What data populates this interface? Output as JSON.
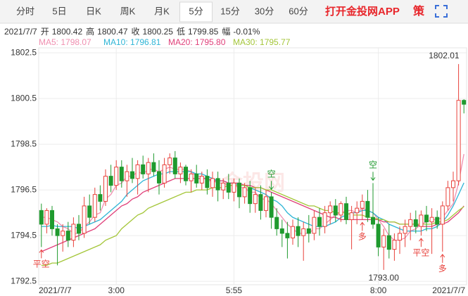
{
  "tabs": [
    "分时",
    "5日",
    "日K",
    "周K",
    "月K",
    "5分",
    "15分",
    "30分",
    "60分"
  ],
  "tab_selected": 5,
  "promo": "打开金投网APP",
  "strategy_icon": "策",
  "info_bar": {
    "date": "2021/7/7",
    "items": [
      {
        "label": "开",
        "value": "1800.42"
      },
      {
        "label": "高",
        "value": "1800.47"
      },
      {
        "label": "收",
        "value": "1800.25"
      },
      {
        "label": "低",
        "value": "1799.85"
      },
      {
        "label": "幅",
        "value": "-0.01%"
      }
    ]
  },
  "chart_data": {
    "type": "candlestick",
    "watermark": "金投网",
    "categories": [
      "2021/7/7",
      null,
      null,
      null,
      null,
      null,
      null,
      null,
      null,
      null,
      null,
      null,
      null,
      null,
      "3:00",
      null,
      null,
      null,
      null,
      null,
      null,
      null,
      null,
      null,
      null,
      null,
      null,
      null,
      null,
      null,
      null,
      null,
      null,
      null,
      null,
      null,
      "5:55",
      null,
      null,
      null,
      null,
      null,
      null,
      null,
      null,
      null,
      null,
      null,
      null,
      null,
      null,
      null,
      null,
      null,
      null,
      null,
      null,
      null,
      null,
      null,
      null,
      null,
      null,
      "8:00",
      null,
      null,
      null,
      null,
      null,
      null,
      null,
      null,
      null,
      null,
      null,
      null,
      null,
      null,
      null,
      "2021/7/7"
    ],
    "open": [
      1795.6,
      1795.0,
      1795.6,
      1794.8,
      1794.5,
      1794.7,
      1794.3,
      1795.0,
      1794.6,
      1795.8,
      1795.3,
      1796.3,
      1796.0,
      1797.1,
      1796.7,
      1797.5,
      1796.9,
      1797.3,
      1797.0,
      1797.6,
      1797.2,
      1797.7,
      1797.3,
      1796.8,
      1797.6,
      1797.9,
      1797.2,
      1797.5,
      1796.9,
      1797.2,
      1796.8,
      1797.1,
      1796.6,
      1797.0,
      1796.5,
      1796.8,
      1796.4,
      1796.8,
      1796.2,
      1796.6,
      1795.9,
      1796.3,
      1795.6,
      1796.2,
      1795.3,
      1794.8,
      1794.6,
      1794.4,
      1794.9,
      1794.5,
      1794.8,
      1794.6,
      1795.3,
      1794.9,
      1795.5,
      1795.8,
      1795.4,
      1795.9,
      1795.2,
      1795.5,
      1795.7,
      1796.0,
      1795.3,
      1795.0,
      1794.0,
      1794.5,
      1793.9,
      1794.3,
      1794.6,
      1794.9,
      1795.2,
      1794.9,
      1795.4,
      1795.1,
      1795.3,
      1795.0,
      1795.8,
      1796.6,
      1796.9,
      1800.42
    ],
    "high": [
      1795.9,
      1795.7,
      1795.8,
      1795.0,
      1795.0,
      1795.1,
      1795.3,
      1795.4,
      1796.2,
      1796.3,
      1796.6,
      1796.7,
      1797.4,
      1797.6,
      1797.8,
      1797.8,
      1797.6,
      1797.9,
      1797.8,
      1798.0,
      1797.9,
      1798.1,
      1797.8,
      1797.9,
      1798.1,
      1798.2,
      1797.7,
      1797.6,
      1797.4,
      1797.6,
      1797.3,
      1797.4,
      1797.3,
      1797.3,
      1797.0,
      1797.2,
      1797.0,
      1797.0,
      1796.8,
      1796.9,
      1796.6,
      1796.7,
      1796.5,
      1796.4,
      1795.7,
      1795.2,
      1795.1,
      1795.2,
      1795.3,
      1795.1,
      1795.4,
      1795.6,
      1795.7,
      1795.8,
      1796.0,
      1796.1,
      1796.0,
      1796.2,
      1795.8,
      1796.0,
      1796.3,
      1796.5,
      1796.8,
      1795.3,
      1794.8,
      1795.0,
      1794.6,
      1794.9,
      1795.2,
      1795.5,
      1795.6,
      1795.6,
      1795.8,
      1795.7,
      1795.6,
      1796.0,
      1796.9,
      1797.3,
      1802.01,
      1800.47
    ],
    "low": [
      1794.0,
      1794.6,
      1794.5,
      1793.2,
      1793.8,
      1794.0,
      1794.0,
      1794.3,
      1794.4,
      1795.0,
      1795.1,
      1795.6,
      1795.8,
      1796.4,
      1796.5,
      1796.6,
      1796.2,
      1796.8,
      1796.3,
      1797.0,
      1796.4,
      1797.1,
      1796.3,
      1796.6,
      1797.2,
      1797.0,
      1796.8,
      1796.7,
      1796.4,
      1796.6,
      1796.5,
      1796.3,
      1796.2,
      1796.0,
      1796.1,
      1796.1,
      1796.0,
      1795.7,
      1795.9,
      1795.5,
      1795.5,
      1795.2,
      1795.3,
      1794.8,
      1794.5,
      1794.0,
      1793.5,
      1794.1,
      1794.0,
      1793.4,
      1794.2,
      1794.3,
      1794.5,
      1794.6,
      1795.0,
      1795.1,
      1795.1,
      1795.0,
      1793.9,
      1795.0,
      1795.2,
      1795.1,
      1794.8,
      1793.6,
      1793.0,
      1793.5,
      1793.4,
      1793.7,
      1794.0,
      1794.3,
      1794.6,
      1794.5,
      1794.7,
      1793.7,
      1794.8,
      1793.8,
      1795.6,
      1796.0,
      1796.7,
      1799.85
    ],
    "close": [
      1795.0,
      1795.6,
      1794.8,
      1794.5,
      1794.7,
      1794.3,
      1795.0,
      1794.6,
      1795.8,
      1795.3,
      1796.3,
      1796.0,
      1797.1,
      1796.7,
      1797.5,
      1796.9,
      1797.3,
      1797.0,
      1797.6,
      1797.2,
      1797.7,
      1797.3,
      1796.8,
      1797.6,
      1797.9,
      1797.2,
      1797.5,
      1796.9,
      1797.2,
      1796.8,
      1797.1,
      1796.6,
      1797.0,
      1796.5,
      1796.8,
      1796.4,
      1796.8,
      1796.2,
      1796.6,
      1795.9,
      1796.3,
      1795.6,
      1796.2,
      1795.3,
      1794.8,
      1794.6,
      1794.4,
      1794.9,
      1794.5,
      1794.8,
      1794.6,
      1795.3,
      1794.9,
      1795.5,
      1795.8,
      1795.4,
      1795.9,
      1795.2,
      1795.5,
      1795.7,
      1796.0,
      1795.3,
      1795.0,
      1794.0,
      1794.5,
      1793.9,
      1794.3,
      1794.6,
      1794.9,
      1795.2,
      1794.9,
      1795.4,
      1795.1,
      1795.3,
      1795.0,
      1795.8,
      1796.6,
      1796.9,
      1800.42,
      1800.25
    ],
    "up_color": "#e8413b",
    "down_color": "#1f9a2e",
    "series": [
      {
        "name": "MA5: 1798.07",
        "color": "#f08fb0",
        "values": [
          1795.3,
          1795.3,
          1795.2,
          1795.1,
          1794.9,
          1794.8,
          1794.6,
          1794.6,
          1794.9,
          1795.1,
          1795.4,
          1795.5,
          1796.1,
          1796.3,
          1796.7,
          1796.8,
          1797.1,
          1797.1,
          1797.3,
          1797.2,
          1797.4,
          1797.4,
          1797.3,
          1797.4,
          1797.5,
          1797.4,
          1797.4,
          1797.4,
          1797.3,
          1797.1,
          1797.1,
          1796.9,
          1796.9,
          1796.8,
          1796.8,
          1796.7,
          1796.7,
          1796.6,
          1796.6,
          1796.4,
          1796.4,
          1796.1,
          1796.1,
          1795.9,
          1795.6,
          1795.3,
          1795.0,
          1794.8,
          1794.6,
          1794.6,
          1794.6,
          1794.8,
          1794.8,
          1795.0,
          1795.2,
          1795.4,
          1795.5,
          1795.6,
          1795.6,
          1795.5,
          1795.7,
          1795.6,
          1795.5,
          1795.2,
          1794.9,
          1794.5,
          1794.3,
          1794.3,
          1794.4,
          1794.7,
          1794.8,
          1795.0,
          1795.1,
          1795.2,
          1795.2,
          1795.3,
          1795.6,
          1795.9,
          1796.8,
          1798.07
        ]
      },
      {
        "name": "MA10: 1796.81",
        "color": "#2fb5d6",
        "values": [
          1794.9,
          1794.9,
          1794.95,
          1794.9,
          1794.9,
          1794.9,
          1794.9,
          1794.8,
          1794.9,
          1795.0,
          1795.1,
          1795.2,
          1795.4,
          1795.6,
          1795.8,
          1796.0,
          1796.3,
          1796.5,
          1796.7,
          1796.9,
          1797.0,
          1797.1,
          1797.2,
          1797.2,
          1797.3,
          1797.3,
          1797.3,
          1797.3,
          1797.3,
          1797.2,
          1797.2,
          1797.1,
          1797.0,
          1796.9,
          1796.9,
          1796.8,
          1796.8,
          1796.7,
          1796.7,
          1796.6,
          1796.5,
          1796.4,
          1796.3,
          1796.1,
          1796.0,
          1795.8,
          1795.5,
          1795.3,
          1795.2,
          1795.1,
          1795.0,
          1794.9,
          1794.9,
          1794.9,
          1795.0,
          1795.1,
          1795.3,
          1795.4,
          1795.5,
          1795.5,
          1795.6,
          1795.6,
          1795.5,
          1795.3,
          1795.2,
          1795.0,
          1794.9,
          1794.8,
          1794.7,
          1794.7,
          1794.7,
          1794.7,
          1794.8,
          1794.8,
          1794.9,
          1795.1,
          1795.4,
          1795.8,
          1796.3,
          1796.81
        ]
      },
      {
        "name": "MA20: 1795.80",
        "color": "#e0407a",
        "values": [
          1793.8,
          1793.9,
          1794.0,
          1794.1,
          1794.2,
          1794.3,
          1794.4,
          1794.5,
          1794.6,
          1794.7,
          1794.8,
          1795.0,
          1795.2,
          1795.4,
          1795.6,
          1795.8,
          1795.9,
          1796.1,
          1796.2,
          1796.4,
          1796.5,
          1796.6,
          1796.7,
          1796.8,
          1796.9,
          1797.0,
          1797.0,
          1797.0,
          1797.0,
          1797.0,
          1797.0,
          1797.0,
          1796.9,
          1796.9,
          1796.9,
          1796.8,
          1796.8,
          1796.8,
          1796.7,
          1796.7,
          1796.6,
          1796.6,
          1796.5,
          1796.4,
          1796.3,
          1796.2,
          1796.1,
          1796.0,
          1795.9,
          1795.8,
          1795.7,
          1795.6,
          1795.5,
          1795.4,
          1795.3,
          1795.3,
          1795.2,
          1795.2,
          1795.2,
          1795.2,
          1795.2,
          1795.2,
          1795.2,
          1795.2,
          1795.1,
          1795.1,
          1795.1,
          1795.0,
          1795.0,
          1795.0,
          1795.0,
          1794.9,
          1794.9,
          1794.9,
          1795.0,
          1795.0,
          1795.1,
          1795.3,
          1795.5,
          1795.8
        ]
      },
      {
        "name": "MA30: 1795.77",
        "color": "#a4c639",
        "values": [
          1793.2,
          1793.2,
          1793.3,
          1793.3,
          1793.4,
          1793.5,
          1793.6,
          1793.7,
          1793.8,
          1793.9,
          1794.0,
          1794.1,
          1794.3,
          1794.4,
          1794.5,
          1794.8,
          1795.0,
          1795.2,
          1795.4,
          1795.5,
          1795.7,
          1795.8,
          1795.9,
          1796.0,
          1796.1,
          1796.2,
          1796.3,
          1796.4,
          1796.4,
          1796.5,
          1796.5,
          1796.5,
          1796.6,
          1796.6,
          1796.6,
          1796.7,
          1796.7,
          1796.7,
          1796.7,
          1796.6,
          1796.6,
          1796.6,
          1796.5,
          1796.5,
          1796.4,
          1796.3,
          1796.2,
          1796.1,
          1796.0,
          1795.9,
          1795.8,
          1795.8,
          1795.7,
          1795.6,
          1795.6,
          1795.5,
          1795.5,
          1795.5,
          1795.4,
          1795.4,
          1795.4,
          1795.3,
          1795.3,
          1795.2,
          1795.2,
          1795.1,
          1795.1,
          1795.0,
          1795.0,
          1795.0,
          1795.0,
          1795.0,
          1795.0,
          1795.0,
          1795.1,
          1795.1,
          1795.2,
          1795.4,
          1795.6,
          1795.77
        ]
      }
    ],
    "ylim": [
      1792.35,
      1802.72
    ],
    "yticks": [
      1792.5,
      1794.5,
      1796.5,
      1798.5,
      1800.5,
      1802.5
    ],
    "grid": true,
    "annotations": [
      {
        "value": 1802.01,
        "label": "1802.01",
        "candle": 78,
        "side": "above"
      },
      {
        "value": 1793.0,
        "label": "1793.00",
        "candle": 64,
        "side": "below"
      }
    ],
    "signals": [
      {
        "label": "平空",
        "candle": 0,
        "side": "below",
        "color": "#e8413b"
      },
      {
        "label": "空",
        "candle": 43,
        "side": "above",
        "color": "#1f9a2e"
      },
      {
        "label": "多",
        "candle": 60,
        "side": "below",
        "color": "#e8413b"
      },
      {
        "label": "空",
        "candle": 62,
        "side": "above",
        "color": "#1f9a2e"
      },
      {
        "label": "平空",
        "candle": 71,
        "side": "below",
        "color": "#e8413b"
      },
      {
        "label": "多",
        "candle": 75,
        "side": "below",
        "color": "#e8413b"
      }
    ]
  }
}
